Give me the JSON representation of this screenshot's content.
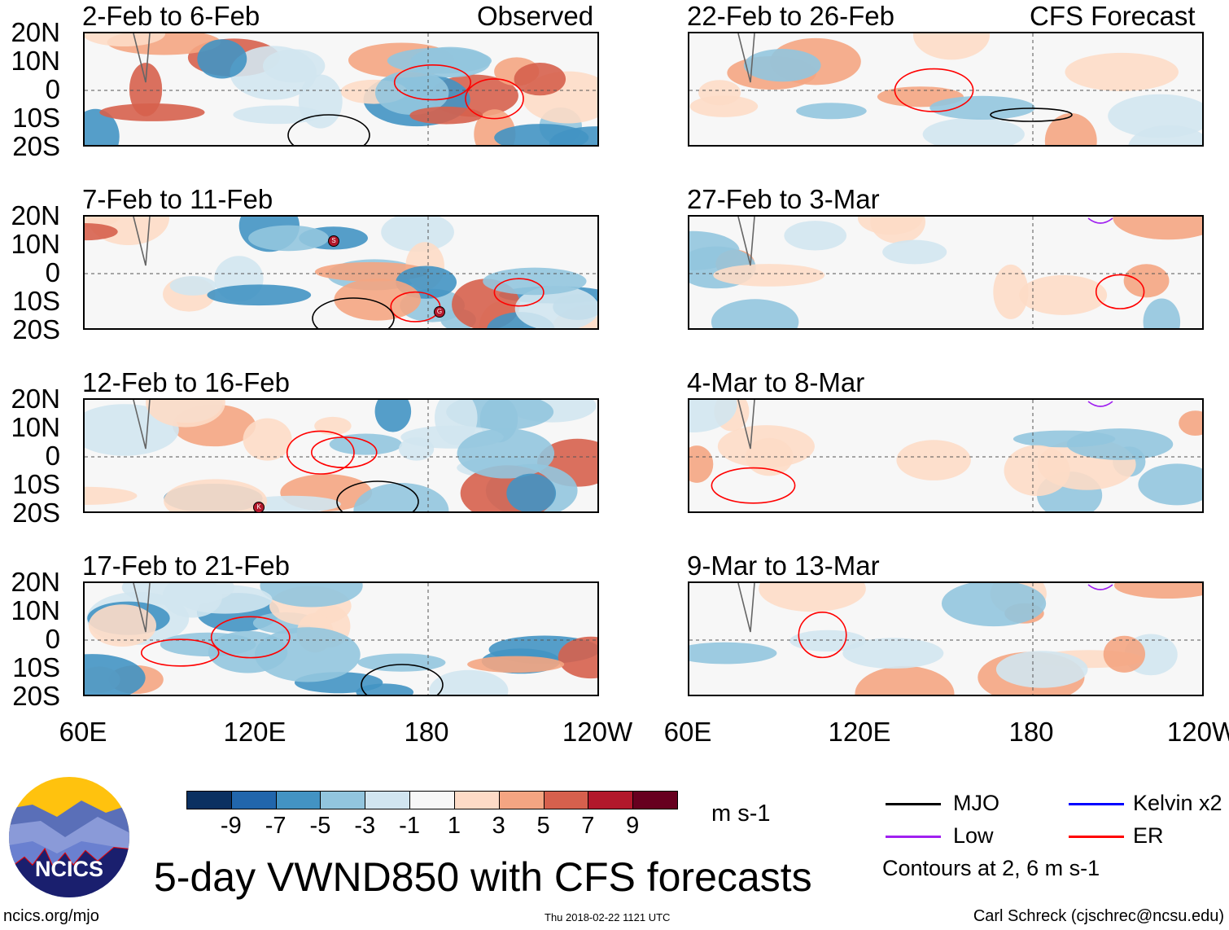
{
  "title": "5-day VWND850 with CFS forecasts",
  "columns": {
    "left_label": "Observed",
    "right_label": "CFS Forecast"
  },
  "lat_labels": [
    "20N",
    "10N",
    "0",
    "10S",
    "20S"
  ],
  "lon_labels": [
    "60E",
    "120E",
    "180",
    "120W"
  ],
  "panels_left": [
    "2-Feb to 6-Feb",
    "7-Feb to 11-Feb",
    "12-Feb to 16-Feb",
    "17-Feb to 21-Feb"
  ],
  "panels_right": [
    "22-Feb to 26-Feb",
    "27-Feb to 3-Mar",
    "4-Mar to 8-Mar",
    "9-Mar to 13-Mar"
  ],
  "storm_labels": [
    "S",
    "G",
    "K"
  ],
  "colorbar": {
    "colors": [
      "#0b3061",
      "#2166ac",
      "#4393c3",
      "#92c5de",
      "#d1e5f0",
      "#f7f7f7",
      "#fddbc7",
      "#f4a582",
      "#d6604d",
      "#b2182b",
      "#67001f"
    ],
    "labels": [
      "-9",
      "-7",
      "-5",
      "-3",
      "-1",
      "1",
      "3",
      "5",
      "7",
      "9"
    ],
    "units": "m s-1"
  },
  "legend": {
    "items": [
      {
        "label": "MJO",
        "color": "#000000"
      },
      {
        "label": "Kelvin x2",
        "color": "#0000ff"
      },
      {
        "label": "Low",
        "color": "#a020f0"
      },
      {
        "label": "ER",
        "color": "#ff0000"
      }
    ],
    "contours": "Contours at 2, 6 m s-1"
  },
  "logo_text": "NCICS",
  "footer": {
    "left": "ncics.org/mjo",
    "center": "Thu 2018-02-22 1121 UTC",
    "right": "Carl Schreck (cjschrec@ncsu.edu)"
  }
}
